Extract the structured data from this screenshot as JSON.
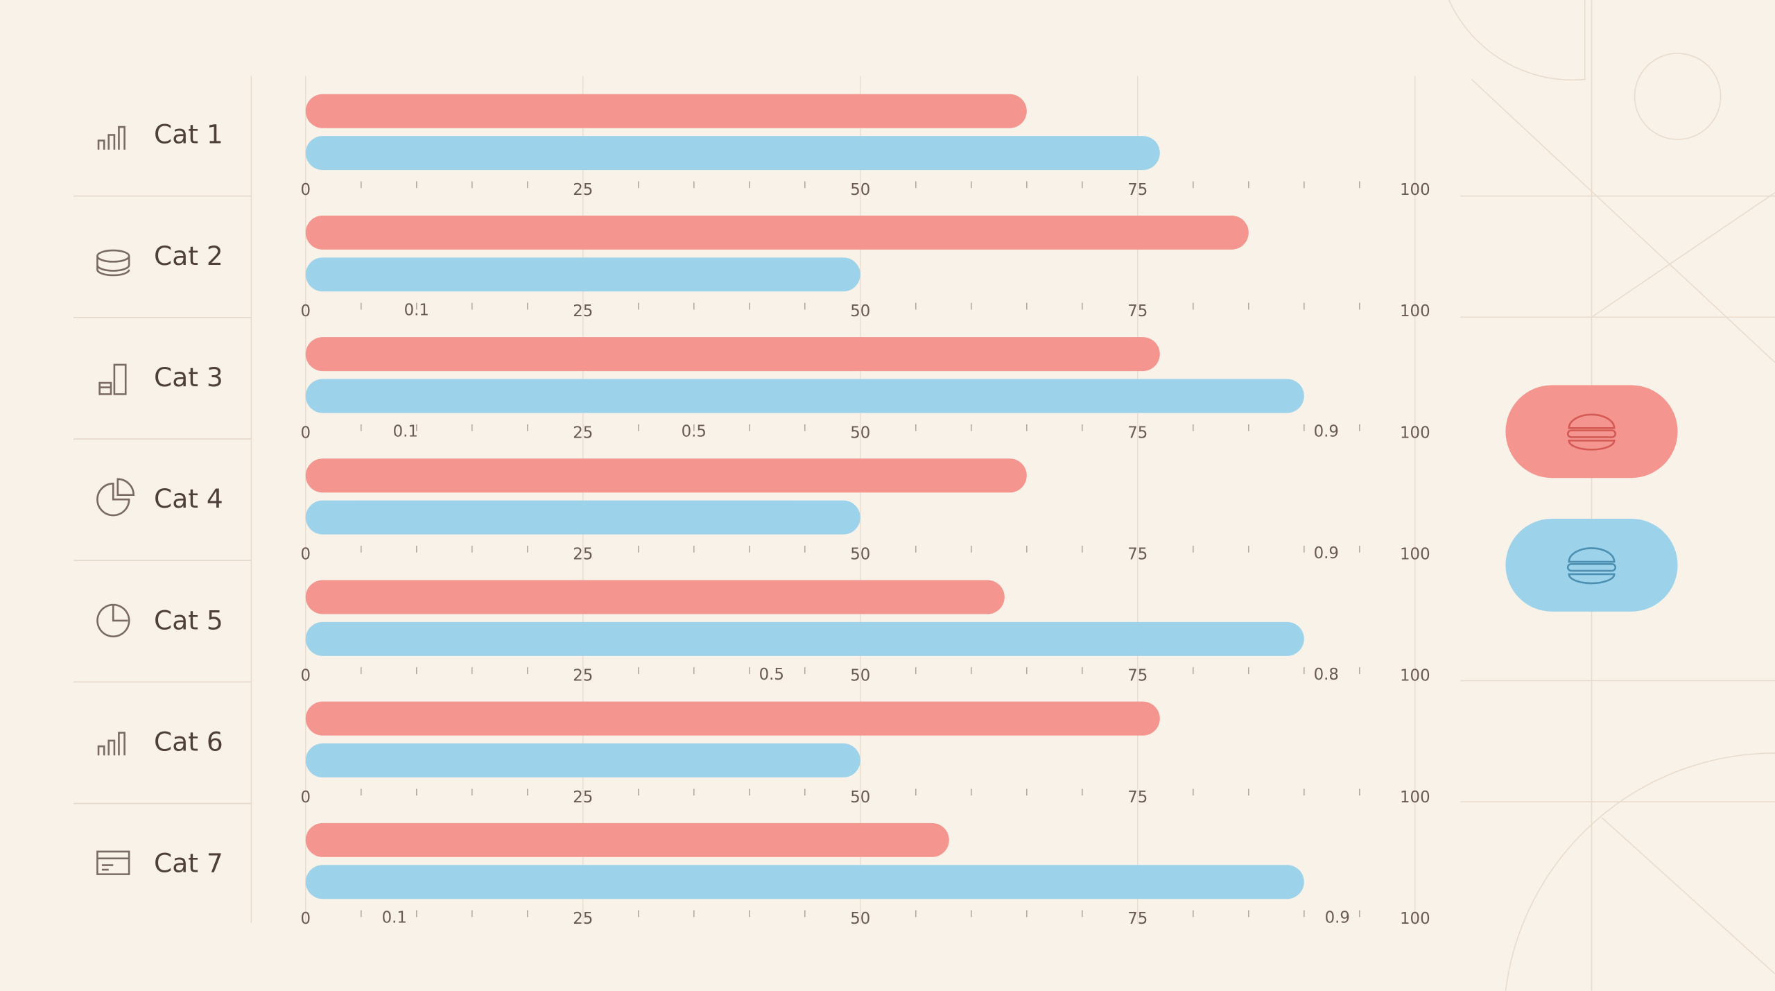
{
  "chart_data": {
    "type": "bar",
    "orientation": "horizontal",
    "categories": [
      "Cat 1",
      "Cat 2",
      "Cat 3",
      "Cat 4",
      "Cat 5",
      "Cat 6",
      "Cat 7"
    ],
    "series": [
      {
        "color": "#f4958f",
        "values": [
          65,
          85,
          77,
          65,
          63,
          77,
          58
        ]
      },
      {
        "color": "#9dd3ea",
        "values": [
          77,
          50,
          90,
          50,
          90,
          50,
          90
        ]
      }
    ],
    "xlim": [
      0,
      100
    ],
    "xticks": [
      0,
      25,
      50,
      75,
      100
    ],
    "xminor_ticks": [
      5,
      10,
      15,
      20,
      30,
      35,
      40,
      45,
      55,
      60,
      65,
      70,
      80,
      85,
      90,
      95
    ],
    "row_ticks": [
      [],
      [
        {
          "value": 10,
          "label": "0.1"
        }
      ],
      [
        {
          "value": 9,
          "label": "0.1"
        },
        {
          "value": 35,
          "label": "0.5"
        },
        {
          "value": 92,
          "label": "0.9"
        }
      ],
      [
        {
          "value": 92,
          "label": "0.9"
        }
      ],
      [
        {
          "value": 42,
          "label": "0.5"
        },
        {
          "value": 92,
          "label": "0.8"
        }
      ],
      [],
      [
        {
          "value": 8,
          "label": "0.1"
        },
        {
          "value": 93,
          "label": "0.9"
        }
      ]
    ],
    "grid": true
  }
}
